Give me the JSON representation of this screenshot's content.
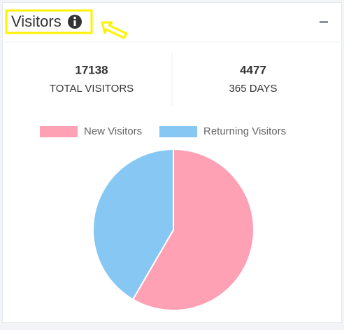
{
  "header": {
    "title": "Visitors"
  },
  "stats": [
    {
      "value": "17138",
      "label": "TOTAL VISITORS"
    },
    {
      "value": "4477",
      "label": "365 DAYS"
    }
  ],
  "chart_data": {
    "type": "pie",
    "categories": [
      "New Visitors",
      "Returning Visitors"
    ],
    "values": [
      58.4,
      41.6
    ],
    "colors": [
      "#ffa1b5",
      "#86c7f3"
    ],
    "legend": "top"
  }
}
